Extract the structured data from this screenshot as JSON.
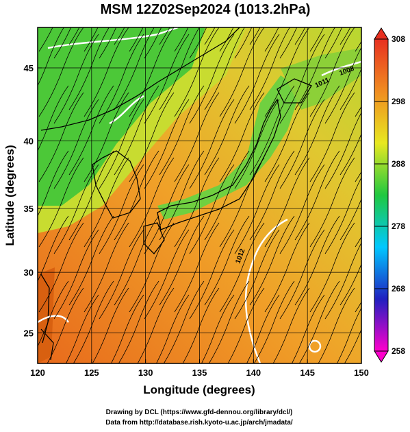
{
  "chart_data": {
    "type": "map",
    "title": "MSM 12Z02Sep2024 (1013.2hPa)",
    "x_label": "Longitude (degrees)",
    "y_label": "Latitude  (degrees)",
    "projection": "mercator",
    "xlim": [
      120,
      150
    ],
    "xticks": [
      120,
      125,
      130,
      135,
      140,
      145,
      150
    ],
    "ylim": [
      22.4,
      47.6
    ],
    "yticks": [
      25,
      30,
      35,
      40,
      45
    ],
    "grid": true,
    "colorbar": {
      "lim": [
        258,
        308
      ],
      "ticks": [
        258,
        268,
        278,
        288,
        298,
        308
      ],
      "colors": [
        "#ff00cc",
        "#2020c0",
        "#00c8ff",
        "#20c840",
        "#e8e820",
        "#f08c20",
        "#e83020"
      ]
    },
    "contour_labels": [
      "1012",
      "1011",
      "1008"
    ],
    "credits": [
      "Drawing by DCL (https://www.gfd-dennou.org/library/dcl/)",
      "Data from http://database.rish.kyoto-u.ac.jp/arch/jmadata/"
    ]
  }
}
